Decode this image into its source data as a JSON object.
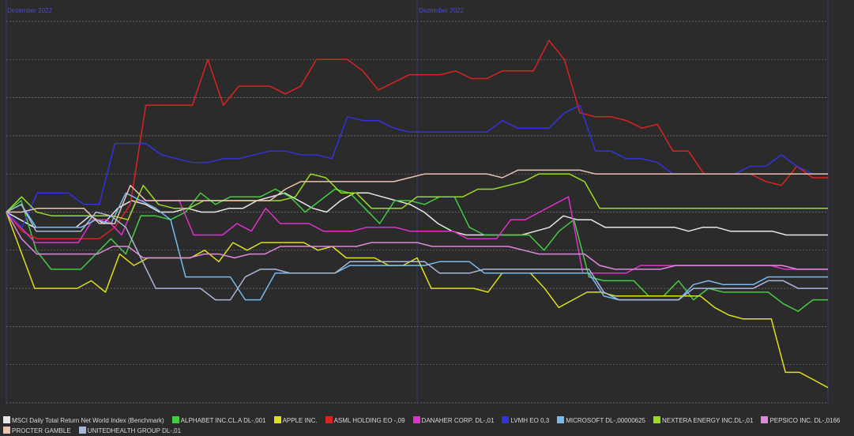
{
  "chart_data": {
    "type": "line",
    "period_labels": [
      "Dezember 2022",
      "Dezember 2022"
    ],
    "right_axis_ticks": [
      "",
      "",
      "",
      "",
      "",
      "",
      "",
      "",
      "",
      "",
      ""
    ],
    "ylim": [
      -50,
      50
    ],
    "grid": true,
    "legend_position": "bottom",
    "series": [
      {
        "name": "MSCI Daily Total Return Net World Index (Benchmark)",
        "color": "#e8e8e8",
        "values": [
          0,
          -2,
          -4,
          -4,
          -4,
          -4,
          -1,
          -3,
          1,
          3,
          2,
          0,
          0,
          1,
          0,
          0,
          1,
          1,
          3,
          4,
          5,
          3,
          1,
          0,
          3,
          5,
          5,
          4,
          3,
          2,
          0,
          -3,
          -5,
          -6,
          -6,
          -6,
          -6,
          -6,
          -5,
          -4,
          -1,
          -2,
          -2,
          -4,
          -4,
          -4,
          -4,
          -4,
          -4,
          -5,
          -4,
          -4,
          -5,
          -5,
          -5,
          -5,
          -6,
          -6,
          -6,
          -6
        ]
      },
      {
        "name": "ALPHABET INC.CL.A DL-,001",
        "color": "#44cc44",
        "values": [
          0,
          3,
          -10,
          -15,
          -15,
          -15,
          -11,
          -7,
          -11,
          -1,
          -1,
          -2,
          0,
          5,
          2,
          4,
          4,
          4,
          6,
          4,
          0,
          3,
          6,
          5,
          1,
          -3,
          3,
          3,
          2,
          4,
          4,
          -4,
          -6,
          -6,
          -6,
          -6,
          -10,
          -5,
          -2,
          -17,
          -18,
          -18,
          -18,
          -22,
          -22,
          -18,
          -23,
          -20,
          -21,
          -21,
          -21,
          -21,
          -24,
          -26,
          -23,
          -23
        ]
      },
      {
        "name": "APPLE INC.",
        "color": "#e0e01a",
        "values": [
          0,
          -10,
          -20,
          -20,
          -20,
          -20,
          -18,
          -21,
          -11,
          -14,
          -12,
          -12,
          -12,
          -12,
          -10,
          -13,
          -8,
          -10,
          -8,
          -8,
          -8,
          -8,
          -10,
          -9,
          -12,
          -12,
          -12,
          -14,
          -14,
          -12,
          -20,
          -20,
          -20,
          -20,
          -21,
          -16,
          -16,
          -16,
          -20,
          -25,
          -23,
          -21,
          -21,
          -22,
          -22,
          -22,
          -22,
          -22,
          -22,
          -22,
          -25,
          -27,
          -28,
          -28,
          -28,
          -42,
          -42,
          -44,
          -46
        ]
      },
      {
        "name": "ASML HOLDING EO -,09",
        "color": "#dd2222",
        "values": [
          0,
          -5,
          -7,
          -7,
          -7,
          -7,
          -7,
          -4,
          2,
          28,
          28,
          28,
          28,
          40,
          28,
          33,
          33,
          33,
          31,
          33,
          40,
          40,
          40,
          37,
          32,
          34,
          36,
          36,
          36,
          37,
          35,
          35,
          37,
          37,
          37,
          45,
          40,
          26,
          25,
          25,
          24,
          22,
          23,
          16,
          16,
          10,
          10,
          10,
          10,
          8,
          7,
          12,
          9,
          9
        ]
      },
      {
        "name": "DANAHER CORP. DL-,01",
        "color": "#dd33cc",
        "values": [
          0,
          -4,
          -8,
          -8,
          -8,
          -8,
          -2,
          -2,
          -6,
          3,
          3,
          3,
          3,
          -6,
          -6,
          -6,
          -3,
          -5,
          1,
          -3,
          -3,
          -3,
          -5,
          -5,
          -5,
          -4,
          -4,
          -4,
          -5,
          -5,
          -5,
          -5,
          -7,
          -7,
          -7,
          -2,
          -2,
          0,
          2,
          4,
          -16,
          -16,
          -16,
          -16,
          -14,
          -14,
          -14,
          -14,
          -14,
          -14,
          -14,
          -14,
          -14,
          -14,
          -15,
          -15,
          -15,
          -15
        ]
      },
      {
        "name": "LVMH EO 0,3",
        "color": "#3333dd",
        "values": [
          0,
          -4,
          5,
          5,
          5,
          2,
          2,
          18,
          18,
          18,
          15,
          14,
          13,
          13,
          14,
          14,
          15,
          16,
          16,
          15,
          15,
          14,
          25,
          24,
          24,
          22,
          21,
          21,
          21,
          21,
          21,
          21,
          24,
          22,
          22,
          22,
          26,
          28,
          16,
          16,
          14,
          14,
          13,
          10,
          10,
          10,
          10,
          10,
          12,
          12,
          15,
          12,
          10,
          10
        ]
      },
      {
        "name": "MICROSOFT DL-,00000625",
        "color": "#77bbee",
        "values": [
          0,
          2,
          -4,
          -4,
          -4,
          -4,
          -2,
          -3,
          5,
          3,
          1,
          -2,
          -17,
          -17,
          -17,
          -17,
          -23,
          -23,
          -16,
          -16,
          -16,
          -16,
          -16,
          -14,
          -14,
          -14,
          -14,
          -14,
          -14,
          -13,
          -13,
          -13,
          -16,
          -16,
          -16,
          -16,
          -16,
          -16,
          -16,
          -16,
          -22,
          -23,
          -23,
          -23,
          -23,
          -23,
          -19,
          -18,
          -19,
          -19,
          -19,
          -17,
          -17,
          -17,
          -17,
          -17
        ]
      },
      {
        "name": "NEXTERA ENERGY INC.DL-,01",
        "color": "#99dd22",
        "values": [
          0,
          4,
          0,
          -1,
          -1,
          -1,
          -1,
          -1,
          -2,
          7,
          2,
          1,
          1,
          3,
          3,
          3,
          3,
          3,
          3,
          4,
          10,
          9,
          5,
          5,
          1,
          1,
          1,
          4,
          4,
          4,
          4,
          6,
          6,
          7,
          8,
          10,
          10,
          10,
          8,
          1,
          1,
          1,
          1,
          1,
          1,
          1,
          1,
          1,
          1,
          1,
          1,
          1,
          1,
          1,
          1
        ]
      },
      {
        "name": "PEPSICO INC. DL-,0166",
        "color": "#dd88dd",
        "values": [
          0,
          -7,
          -11,
          -11,
          -11,
          -11,
          -11,
          -9,
          -9,
          -12,
          -12,
          -12,
          -12,
          -11,
          -11,
          -12,
          -11,
          -11,
          -9,
          -9,
          -9,
          -9,
          -9,
          -9,
          -8,
          -8,
          -8,
          -8,
          -9,
          -9,
          -9,
          -9,
          -9,
          -9,
          -10,
          -11,
          -11,
          -11,
          -11,
          -14,
          -15,
          -15,
          -15,
          -15,
          -14,
          -14,
          -14,
          -14,
          -14,
          -14,
          -14,
          -14,
          -15,
          -15,
          -15
        ]
      },
      {
        "name": "PROCTER GAMBLE",
        "color": "#e8c4b4",
        "values": [
          0,
          0,
          1,
          1,
          1,
          1,
          -3,
          -3,
          7,
          3,
          3,
          3,
          3,
          3,
          3,
          3,
          3,
          3,
          6,
          8,
          8,
          8,
          8,
          8,
          8,
          8,
          9,
          10,
          10,
          10,
          10,
          10,
          9,
          11,
          11,
          11,
          11,
          11,
          10,
          10,
          10,
          10,
          10,
          10,
          10,
          10,
          10,
          10,
          10,
          10,
          10,
          10,
          10,
          10
        ]
      },
      {
        "name": "UNITEDHEALTH GROUP DL-,01",
        "color": "#aab8d8",
        "values": [
          0,
          2,
          -5,
          -5,
          -5,
          -5,
          0,
          -1,
          -4,
          -12,
          -20,
          -20,
          -20,
          -20,
          -23,
          -23,
          -17,
          -15,
          -15,
          -16,
          -16,
          -16,
          -16,
          -13,
          -13,
          -13,
          -13,
          -13,
          -13,
          -16,
          -16,
          -16,
          -15,
          -15,
          -15,
          -15,
          -15,
          -15,
          -15,
          -15,
          -21,
          -23,
          -23,
          -23,
          -23,
          -23,
          -20,
          -20,
          -20,
          -20,
          -20,
          -18,
          -18,
          -20,
          -20,
          -20
        ]
      }
    ]
  }
}
